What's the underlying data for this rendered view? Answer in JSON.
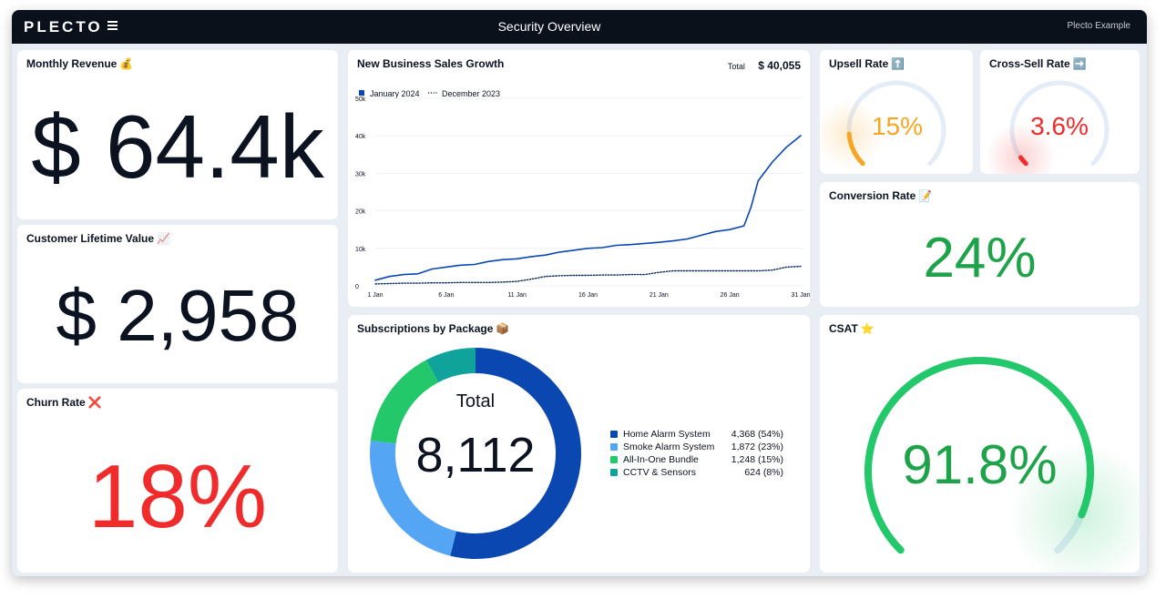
{
  "topbar": {
    "logo": "PLECTO",
    "title": "Security Overview",
    "account": "Plecto Example"
  },
  "cards": {
    "monthly_revenue": {
      "title": "Monthly Revenue",
      "emoji": "💰",
      "value": "$ 64.4k"
    },
    "customer_lifetime_value": {
      "title": "Customer Lifetime Value",
      "emoji": "📈",
      "value": "$ 2,958"
    },
    "churn_rate": {
      "title": "Churn Rate",
      "emoji": "❌",
      "value": "18%",
      "color": "#ef2b2b"
    },
    "upsell_rate": {
      "title": "Upsell Rate",
      "emoji": "⬆️",
      "value": "15%",
      "percent": 15,
      "color": "#f5a623"
    },
    "cross_sell_rate": {
      "title": "Cross-Sell Rate",
      "emoji": "➡️",
      "value": "3.6%",
      "percent": 3.6,
      "color": "#ef2b2b"
    },
    "conversion_rate": {
      "title": "Conversion Rate",
      "emoji": "📝",
      "value": "24%",
      "color": "#1fa34a"
    },
    "csat": {
      "title": "CSAT",
      "emoji": "⭐",
      "value": "91.8%",
      "percent": 91.8,
      "color": "#1fa34a"
    }
  },
  "sales_chart": {
    "title": "New Business Sales Growth",
    "total_label": "Total",
    "total_value": "$ 40,055",
    "chart_data": {
      "type": "line",
      "x_ticks": [
        "1 Jan",
        "6 Jan",
        "11 Jan",
        "16 Jan",
        "21 Jan",
        "26 Jan",
        "31 Jan"
      ],
      "y_ticks": [
        "0",
        "10k",
        "20k",
        "30k",
        "40k",
        "50k"
      ],
      "ylim": [
        0,
        50000
      ],
      "xlim": [
        1,
        31
      ],
      "series": [
        {
          "name": "January 2024",
          "style": "solid",
          "color": "#0b47b0",
          "x": [
            1,
            2,
            3,
            4,
            5,
            6,
            7,
            8,
            9,
            10,
            11,
            12,
            13,
            14,
            15,
            16,
            17,
            18,
            19,
            20,
            21,
            22,
            23,
            24,
            25,
            26,
            27,
            27.5,
            28,
            29,
            30,
            31
          ],
          "y": [
            1500,
            2500,
            3000,
            3200,
            4500,
            5000,
            5500,
            5700,
            6500,
            7000,
            7200,
            7800,
            8200,
            9000,
            9500,
            10000,
            10200,
            10800,
            11000,
            11300,
            11600,
            12000,
            12500,
            13500,
            14500,
            15000,
            16000,
            21000,
            28000,
            33000,
            37000,
            40055
          ]
        },
        {
          "name": "December 2023",
          "style": "dotted",
          "color": "#0b2a5b",
          "x": [
            1,
            2,
            3,
            4,
            5,
            6,
            7,
            8,
            9,
            10,
            11,
            12,
            13,
            14,
            15,
            16,
            17,
            18,
            19,
            20,
            21,
            22,
            23,
            24,
            25,
            26,
            27,
            28,
            29,
            30,
            31
          ],
          "y": [
            500,
            600,
            700,
            700,
            800,
            800,
            900,
            900,
            900,
            1000,
            1200,
            1800,
            2500,
            2700,
            2800,
            2800,
            2900,
            2900,
            3000,
            3000,
            3600,
            4000,
            4000,
            4000,
            4000,
            4000,
            4000,
            4000,
            4200,
            5000,
            5200
          ]
        }
      ]
    }
  },
  "subscriptions": {
    "title": "Subscriptions by Package",
    "emoji": "📦",
    "total_label": "Total",
    "total_value": "8,112",
    "chart_data": {
      "type": "pie",
      "labels": [
        "Home Alarm System",
        "Smoke Alarm System",
        "All-In-One Bundle",
        "CCTV & Sensors"
      ],
      "values": [
        4368,
        1872,
        1248,
        624
      ],
      "display": [
        "4,368 (54%)",
        "1,872 (23%)",
        "1,248 (15%)",
        "624 (8%)"
      ],
      "colors": [
        "#0b47b0",
        "#54a6f5",
        "#22c86a",
        "#10a39c"
      ]
    }
  }
}
